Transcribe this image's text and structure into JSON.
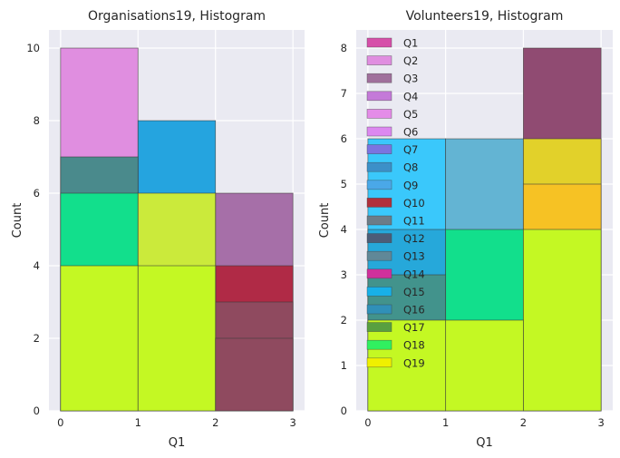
{
  "figure": {
    "background": "#ffffff",
    "axes_background": "#eaeaf2",
    "grid_color": "#ffffff",
    "bar_edge_color": "#3a3a3a"
  },
  "chart_data": [
    {
      "type": "bar",
      "title": "Organisations19, Histogram",
      "xlabel": "Q1",
      "ylabel": "Count",
      "xlim": [
        -0.15,
        3.15
      ],
      "ylim": [
        0,
        10.5
      ],
      "xticks": [
        "0",
        "1",
        "2",
        "3"
      ],
      "yticks": [
        "0",
        "2",
        "4",
        "6",
        "8",
        "10"
      ],
      "grid": true,
      "bars": [
        {
          "x0": 0,
          "x1": 1,
          "count": 10,
          "color": "#e08ee0",
          "opacity": 1
        },
        {
          "x0": 1,
          "x1": 2,
          "count": 8,
          "color": "#25a4df",
          "opacity": 1
        },
        {
          "x0": 2,
          "x1": 3,
          "count": 6,
          "color": "#a66fa8",
          "opacity": 1
        },
        {
          "x0": 0,
          "x1": 1,
          "count": 7,
          "color": "#4a8a8c",
          "opacity": 1
        },
        {
          "x0": 2,
          "x1": 3,
          "count": 4,
          "color": "#b02a46",
          "opacity": 1
        },
        {
          "x0": 0,
          "x1": 1,
          "count": 6,
          "color": "#12df8c",
          "opacity": 1
        },
        {
          "x0": 1,
          "x1": 2,
          "count": 6,
          "color": "#cbea3b",
          "opacity": 1
        },
        {
          "x0": 2,
          "x1": 3,
          "count": 3,
          "color": "#8f4a5f",
          "opacity": 1
        },
        {
          "x0": 0,
          "x1": 1,
          "count": 4,
          "color": "#c4f823",
          "opacity": 1
        },
        {
          "x0": 1,
          "x1": 2,
          "count": 4,
          "color": "#c4f823",
          "opacity": 1
        },
        {
          "x0": 2,
          "x1": 3,
          "count": 2,
          "color": "#8f4a5f",
          "opacity": 1
        }
      ]
    },
    {
      "type": "bar",
      "title": "Volunteers19, Histogram",
      "xlabel": "Q1",
      "ylabel": "Count",
      "xlim": [
        -0.15,
        3.15
      ],
      "ylim": [
        0,
        8.4
      ],
      "xticks": [
        "0",
        "1",
        "2",
        "3"
      ],
      "yticks": [
        "0",
        "1",
        "2",
        "3",
        "4",
        "5",
        "6",
        "7",
        "8"
      ],
      "grid": true,
      "bars": [
        {
          "x0": 2,
          "x1": 3,
          "count": 8,
          "color": "#904b72",
          "opacity": 1
        },
        {
          "x0": 0,
          "x1": 1,
          "count": 6,
          "color": "#3ac8fb",
          "opacity": 1
        },
        {
          "x0": 1,
          "x1": 2,
          "count": 6,
          "color": "#63b4d3",
          "opacity": 1
        },
        {
          "x0": 2,
          "x1": 3,
          "count": 6,
          "color": "#e2d12a",
          "opacity": 1
        },
        {
          "x0": 2,
          "x1": 3,
          "count": 5,
          "color": "#f6c224",
          "opacity": 1
        },
        {
          "x0": 0,
          "x1": 1,
          "count": 4,
          "color": "#26a8da",
          "opacity": 1
        },
        {
          "x0": 1,
          "x1": 2,
          "count": 4,
          "color": "#12df8c",
          "opacity": 1
        },
        {
          "x0": 2,
          "x1": 3,
          "count": 4,
          "color": "#c4f823",
          "opacity": 1
        },
        {
          "x0": 0,
          "x1": 1,
          "count": 3,
          "color": "#42938c",
          "opacity": 1
        },
        {
          "x0": 1,
          "x1": 2,
          "count": 2,
          "color": "#c4f823",
          "opacity": 1
        },
        {
          "x0": 0,
          "x1": 1,
          "count": 2,
          "color": "#c4f823",
          "opacity": 1
        }
      ],
      "legend": {
        "placement": "upper-left",
        "entries": [
          {
            "label": "Q1",
            "color": "#d64fa9"
          },
          {
            "label": "Q2",
            "color": "#e08ee0"
          },
          {
            "label": "Q3",
            "color": "#a0709c"
          },
          {
            "label": "Q4",
            "color": "#c47ad8"
          },
          {
            "label": "Q5",
            "color": "#e48ce8"
          },
          {
            "label": "Q6",
            "color": "#dc88f0"
          },
          {
            "label": "Q7",
            "color": "#7c74e0"
          },
          {
            "label": "Q8",
            "color": "#3c90c8"
          },
          {
            "label": "Q9",
            "color": "#4aa8e8"
          },
          {
            "label": "Q10",
            "color": "#b0303c"
          },
          {
            "label": "Q11",
            "color": "#6c7c88"
          },
          {
            "label": "Q12",
            "color": "#4c5c78"
          },
          {
            "label": "Q13",
            "color": "#608898"
          },
          {
            "label": "Q14",
            "color": "#d0309c"
          },
          {
            "label": "Q15",
            "color": "#18b0e8"
          },
          {
            "label": "Q16",
            "color": "#3090b8"
          },
          {
            "label": "Q17",
            "color": "#58a040"
          },
          {
            "label": "Q18",
            "color": "#30f060"
          },
          {
            "label": "Q19",
            "color": "#f0f000"
          }
        ]
      }
    }
  ]
}
